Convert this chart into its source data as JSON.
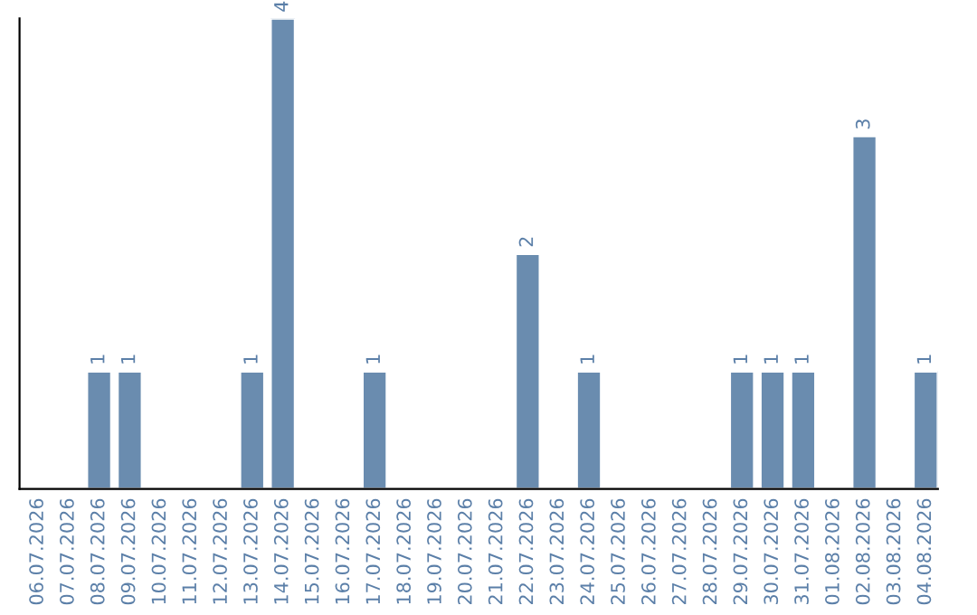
{
  "chart_data": {
    "type": "bar",
    "categories": [
      "06.07.2026",
      "07.07.2026",
      "08.07.2026",
      "09.07.2026",
      "10.07.2026",
      "11.07.2026",
      "12.07.2026",
      "13.07.2026",
      "14.07.2026",
      "15.07.2026",
      "16.07.2026",
      "17.07.2026",
      "18.07.2026",
      "19.07.2026",
      "20.07.2026",
      "21.07.2026",
      "22.07.2026",
      "23.07.2026",
      "24.07.2026",
      "25.07.2026",
      "26.07.2026",
      "27.07.2026",
      "28.07.2026",
      "29.07.2026",
      "30.07.2026",
      "31.07.2026",
      "01.08.2026",
      "02.08.2026",
      "03.08.2026",
      "04.08.2026"
    ],
    "values": [
      null,
      null,
      1,
      1,
      null,
      null,
      null,
      1,
      4,
      null,
      null,
      1,
      null,
      null,
      null,
      null,
      2,
      null,
      1,
      null,
      null,
      null,
      null,
      1,
      1,
      1,
      null,
      3,
      null,
      1
    ],
    "value_labels": [
      null,
      null,
      "1",
      "1",
      null,
      null,
      null,
      "1",
      "4",
      null,
      null,
      "1",
      null,
      null,
      null,
      null,
      "2",
      null,
      "1",
      null,
      null,
      null,
      null,
      "1",
      "1",
      "1",
      null,
      "3",
      null,
      "1"
    ],
    "color": "#6a8caf",
    "grid": false,
    "legend": false,
    "tick_labels": "x"
  }
}
